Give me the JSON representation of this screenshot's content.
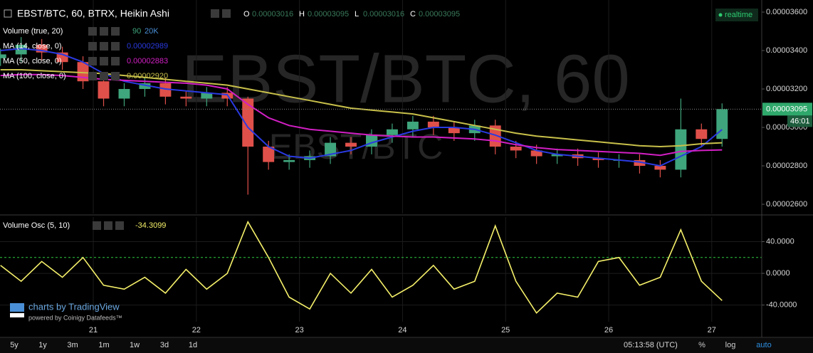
{
  "chart_data": [
    {
      "type": "candlestick",
      "title": "EBST/BTC, 60, BTRX, Heikin Ashi",
      "ohlc_labels": [
        "O",
        "H",
        "L",
        "C"
      ],
      "ohlc_values": [
        3.016e-05,
        3.095e-05,
        3.016e-05,
        3.095e-05
      ],
      "realtime": "realtime",
      "watermark": {
        "main": "EBST/BTC, 60",
        "sub": "EBST/BTC"
      },
      "volume_indicator": {
        "name": "Volume (true, 20)",
        "values": [
          90,
          {
            "value": 20000,
            "label": "20K"
          }
        ]
      },
      "up_color": "#3fa57c",
      "down_color": "#e0504a",
      "xlim": [
        20.095,
        27.485
      ],
      "ylim": [
        2.552e-05,
        3.663e-05
      ],
      "yticks": [
        {
          "value": 2.6e-05,
          "label": "0.00002600"
        },
        {
          "value": 2.8e-05,
          "label": "0.00002800"
        },
        {
          "value": 3e-05,
          "label": "0.00003000"
        },
        {
          "value": 3.2e-05,
          "label": "0.00003200"
        },
        {
          "value": 3.4e-05,
          "label": "0.00003400"
        },
        {
          "value": 3.6e-05,
          "label": "0.00003600"
        }
      ],
      "grid": true,
      "last_price": 3.095e-05,
      "countdown": "46:01",
      "x": [
        20.1,
        20.3,
        20.5,
        20.7,
        20.9,
        21.1,
        21.3,
        21.5,
        21.7,
        21.9,
        22.1,
        22.3,
        22.5,
        22.7,
        22.9,
        23.1,
        23.3,
        23.5,
        23.7,
        23.9,
        24.1,
        24.3,
        24.5,
        24.7,
        24.9,
        25.1,
        25.3,
        25.5,
        25.7,
        25.9,
        26.1,
        26.3,
        26.5,
        26.7,
        26.9,
        27.1
      ],
      "open": [
        3.36e-05,
        3.38e-05,
        3.43e-05,
        3.39e-05,
        3.34e-05,
        3.24e-05,
        3.15e-05,
        3.2e-05,
        3.23e-05,
        3.16e-05,
        3.15e-05,
        3.18e-05,
        3.15e-05,
        2.9e-05,
        2.82e-05,
        2.83e-05,
        2.85e-05,
        2.92e-05,
        2.9e-05,
        2.96e-05,
        2.99e-05,
        3.03e-05,
        3e-05,
        2.97e-05,
        3.01e-05,
        2.9e-05,
        2.88e-05,
        2.85e-05,
        2.86e-05,
        2.84e-05,
        2.83e-05,
        2.83e-05,
        2.8e-05,
        2.78e-05,
        2.99e-05,
        2.94e-05
      ],
      "high": [
        3.41e-05,
        3.47e-05,
        3.46e-05,
        3.42e-05,
        3.37e-05,
        3.27e-05,
        3.23e-05,
        3.26e-05,
        3.26e-05,
        3.19e-05,
        3.21e-05,
        3.21e-05,
        3.16e-05,
        2.93e-05,
        2.86e-05,
        2.88e-05,
        2.95e-05,
        2.95e-05,
        2.99e-05,
        3.02e-05,
        3.06e-05,
        3.06e-05,
        3.03e-05,
        3.04e-05,
        3.04e-05,
        2.93e-05,
        2.91e-05,
        2.89e-05,
        2.89e-05,
        2.87e-05,
        2.86e-05,
        2.86e-05,
        2.83e-05,
        3.15e-05,
        3.02e-05,
        3.125e-05
      ],
      "low": [
        3.32e-05,
        3.34e-05,
        3.35e-05,
        3.3e-05,
        3.2e-05,
        3.11e-05,
        3.11e-05,
        3.16e-05,
        3.12e-05,
        3.11e-05,
        3.11e-05,
        3.11e-05,
        2.65e-05,
        2.78e-05,
        2.78e-05,
        2.79e-05,
        2.81e-05,
        2.86e-05,
        2.86e-05,
        2.92e-05,
        2.95e-05,
        2.96e-05,
        2.93e-05,
        2.93e-05,
        2.86e-05,
        2.84e-05,
        2.81e-05,
        2.81e-05,
        2.8e-05,
        2.79e-05,
        2.79e-05,
        2.76e-05,
        2.74e-05,
        2.74e-05,
        2.9e-05,
        2.9e-05
      ],
      "close": [
        3.38e-05,
        3.43e-05,
        3.39e-05,
        3.34e-05,
        3.24e-05,
        3.15e-05,
        3.2e-05,
        3.23e-05,
        3.16e-05,
        3.15e-05,
        3.18e-05,
        3.15e-05,
        2.9e-05,
        2.82e-05,
        2.83e-05,
        2.85e-05,
        2.92e-05,
        2.9e-05,
        2.96e-05,
        2.99e-05,
        3.03e-05,
        3e-05,
        2.97e-05,
        3.01e-05,
        2.9e-05,
        2.88e-05,
        2.85e-05,
        2.86e-05,
        2.84e-05,
        2.83e-05,
        2.83e-05,
        2.8e-05,
        2.78e-05,
        2.99e-05,
        2.94e-05,
        3.095e-05
      ],
      "series": [
        {
          "name": "MA (14, close, 0)",
          "color": "#2a3ae0",
          "last_value": 2.989e-05,
          "values": [
            3.4e-05,
            3.41e-05,
            3.4e-05,
            3.38e-05,
            3.34e-05,
            3.28e-05,
            3.24e-05,
            3.22e-05,
            3.2e-05,
            3.19e-05,
            3.18e-05,
            3.17e-05,
            3e-05,
            2.9e-05,
            2.85e-05,
            2.84e-05,
            2.86e-05,
            2.88e-05,
            2.92e-05,
            2.95e-05,
            2.98e-05,
            3e-05,
            3e-05,
            2.99e-05,
            2.96e-05,
            2.92e-05,
            2.88e-05,
            2.86e-05,
            2.85e-05,
            2.84e-05,
            2.83e-05,
            2.82e-05,
            2.8e-05,
            2.85e-05,
            2.9e-05,
            2.989e-05
          ]
        },
        {
          "name": "MA (50, close, 0)",
          "color": "#d21fc4",
          "last_value": 2.883e-05,
          "values": [
            3.27e-05,
            3.275e-05,
            3.275e-05,
            3.27e-05,
            3.26e-05,
            3.25e-05,
            3.245e-05,
            3.24e-05,
            3.235e-05,
            3.23e-05,
            3.22e-05,
            3.2e-05,
            3.12e-05,
            3.05e-05,
            3.01e-05,
            2.99e-05,
            2.98e-05,
            2.97e-05,
            2.96e-05,
            2.955e-05,
            2.95e-05,
            2.95e-05,
            2.945e-05,
            2.94e-05,
            2.93e-05,
            2.91e-05,
            2.895e-05,
            2.885e-05,
            2.88e-05,
            2.875e-05,
            2.87e-05,
            2.865e-05,
            2.855e-05,
            2.875e-05,
            2.88e-05,
            2.883e-05
          ]
        },
        {
          "name": "MA (100, close, 0)",
          "color": "#c8c04a",
          "last_value": {
            "value": 2.92e-05,
            "label": "0.00002920"
          },
          "values": [
            3.3e-05,
            3.3e-05,
            3.295e-05,
            3.29e-05,
            3.285e-05,
            3.28e-05,
            3.27e-05,
            3.26e-05,
            3.25e-05,
            3.24e-05,
            3.23e-05,
            3.22e-05,
            3.2e-05,
            3.18e-05,
            3.16e-05,
            3.14e-05,
            3.12e-05,
            3.1e-05,
            3.09e-05,
            3.08e-05,
            3.07e-05,
            3.05e-05,
            3.03e-05,
            3.01e-05,
            2.99e-05,
            2.97e-05,
            2.955e-05,
            2.945e-05,
            2.935e-05,
            2.925e-05,
            2.915e-05,
            2.905e-05,
            2.9e-05,
            2.905e-05,
            2.915e-05,
            2.92e-05
          ]
        }
      ]
    },
    {
      "type": "line",
      "title": "Volume Osc (5, 10)",
      "last_value": -34.3099,
      "color": "#f5f06a",
      "hline": 20,
      "hline_color": "#2ecc40",
      "xlim": [
        20.095,
        27.485
      ],
      "xticks": [
        21,
        22,
        23,
        24,
        25,
        26,
        27
      ],
      "ylim": [
        -61,
        71
      ],
      "yticks": [
        {
          "value": 40,
          "label": "40.0000"
        },
        {
          "value": 0,
          "label": "0.0000"
        },
        {
          "value": -40,
          "label": "-40.0000"
        }
      ],
      "grid": true,
      "x": [
        20.1,
        20.3,
        20.5,
        20.7,
        20.9,
        21.1,
        21.3,
        21.5,
        21.7,
        21.9,
        22.1,
        22.3,
        22.5,
        22.7,
        22.9,
        23.1,
        23.3,
        23.5,
        23.7,
        23.9,
        24.1,
        24.3,
        24.5,
        24.7,
        24.9,
        25.1,
        25.3,
        25.5,
        25.7,
        25.9,
        26.1,
        26.3,
        26.5,
        26.7,
        26.9,
        27.1
      ],
      "values": [
        10,
        -10,
        15,
        -5,
        20,
        -15,
        -20,
        -5,
        -25,
        5,
        -20,
        0,
        65,
        20,
        -30,
        -45,
        0,
        -25,
        5,
        -30,
        -15,
        10,
        -20,
        -10,
        60,
        -10,
        -50,
        -25,
        -30,
        15,
        20,
        -15,
        -5,
        55,
        -10,
        -34.3099
      ]
    }
  ],
  "branding": {
    "main": "charts by TradingView",
    "sub": "powered by Coinigy Datafeeds™"
  },
  "toolbar": {
    "ranges": [
      "5y",
      "1y",
      "3m",
      "1m",
      "1w",
      "3d",
      "1d"
    ],
    "time": "05:13:58 (UTC)",
    "scale": [
      "%",
      "log",
      "auto"
    ]
  }
}
